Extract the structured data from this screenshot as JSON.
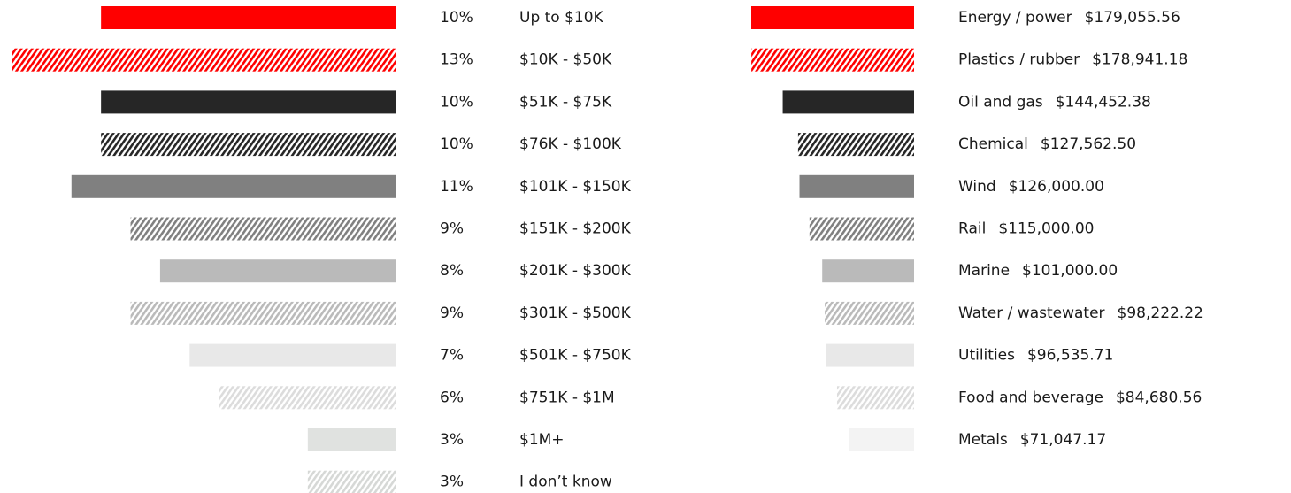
{
  "chart_data": [
    {
      "type": "bar",
      "orientation": "horizontal",
      "categories": [
        "Up to $10K",
        "$10K - $50K",
        "$51K - $75K",
        "$76K - $100K",
        "$101K - $150K",
        "$151K - $200K",
        "$201K - $300K",
        "$301K - $500K",
        "$501K - $750K",
        "$751K - $1M",
        "$1M+",
        "I don’t know"
      ],
      "values": [
        10,
        13,
        10,
        10,
        11,
        9,
        8,
        9,
        7,
        6,
        3,
        3
      ],
      "value_labels": [
        "10%",
        "13%",
        "10%",
        "10%",
        "11%",
        "9%",
        "8%",
        "9%",
        "7%",
        "6%",
        "3%",
        "3%"
      ],
      "colors": [
        "#ff0000",
        "#ff0000",
        "#262626",
        "#262626",
        "#808080",
        "#808080",
        "#bababa",
        "#bababa",
        "#e8e8e8",
        "#dcdcdc",
        "#e0e2e0",
        "#d6d8d6"
      ],
      "patterns": [
        "solid",
        "hatched",
        "solid",
        "hatched",
        "solid",
        "hatched",
        "solid",
        "hatched",
        "solid",
        "hatched",
        "solid",
        "hatched"
      ]
    },
    {
      "type": "bar",
      "orientation": "horizontal",
      "categories": [
        "Energy / power",
        "Plastics / rubber",
        "Oil and gas",
        "Chemical",
        "Wind",
        "Rail",
        "Marine",
        "Water / wastewater",
        "Utilities",
        "Food and beverage",
        "Metals"
      ],
      "values": [
        179055.56,
        178941.18,
        144452.38,
        127562.5,
        126000.0,
        115000.0,
        101000.0,
        98222.22,
        96535.71,
        84680.56,
        71047.17
      ],
      "value_labels": [
        "$179,055.56",
        "$178,941.18",
        "$144,452.38",
        "$127,562.50",
        "$126,000.00",
        "$115,000.00",
        "$101,000.00",
        "$98,222.22",
        "$96,535.71",
        "$84,680.56",
        "$71,047.17"
      ],
      "colors": [
        "#ff0000",
        "#ff0000",
        "#262626",
        "#262626",
        "#808080",
        "#808080",
        "#bababa",
        "#bababa",
        "#e8e8e8",
        "#dcdcdc",
        "#f3f3f3"
      ],
      "patterns": [
        "solid",
        "hatched",
        "solid",
        "hatched",
        "solid",
        "hatched",
        "solid",
        "hatched",
        "solid",
        "hatched",
        "solid"
      ]
    }
  ]
}
